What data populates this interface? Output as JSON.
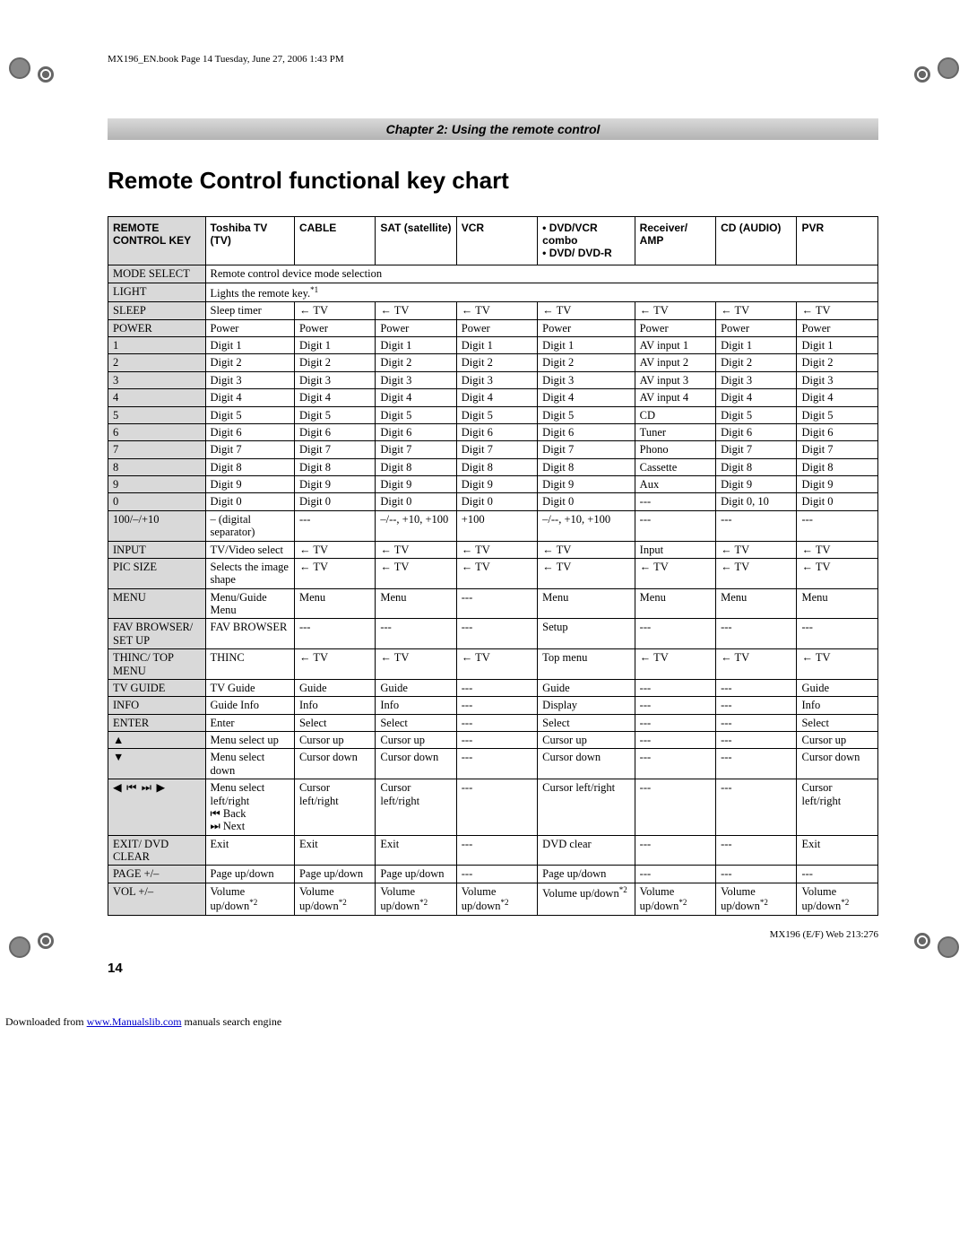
{
  "book_header": "MX196_EN.book  Page 14  Tuesday, June 27, 2006  1:43 PM",
  "chapter_banner": "Chapter 2: Using the remote control",
  "main_title": "Remote Control functional key chart",
  "page_number": "14",
  "footer_right": "MX196 (E/F) Web 213:276",
  "download_prefix": "Downloaded from ",
  "download_link": "www.Manualslib.com",
  "download_suffix": " manuals search engine",
  "columns": [
    "REMOTE CONTROL KEY",
    "Toshiba TV (TV)",
    "CABLE",
    "SAT (satellite)",
    "VCR",
    "• DVD/VCR combo\n• DVD/ DVD-R",
    "Receiver/ AMP",
    "CD (AUDIO)",
    "PVR"
  ],
  "span_rows": [
    {
      "key": "MODE SELECT",
      "text": "Remote control device mode selection"
    },
    {
      "key": "LIGHT",
      "text": "Lights the remote key.",
      "sup": "*1"
    }
  ],
  "rows": [
    {
      "k": "SLEEP",
      "c": [
        "Sleep timer",
        "← TV",
        "← TV",
        "← TV",
        "← TV",
        "← TV",
        "← TV",
        "← TV"
      ]
    },
    {
      "k": "POWER",
      "c": [
        "Power",
        "Power",
        "Power",
        "Power",
        "Power",
        "Power",
        "Power",
        "Power"
      ]
    },
    {
      "k": "1",
      "c": [
        "Digit 1",
        "Digit 1",
        "Digit 1",
        "Digit 1",
        "Digit 1",
        "AV input 1",
        "Digit 1",
        "Digit 1"
      ]
    },
    {
      "k": "2",
      "c": [
        "Digit 2",
        "Digit 2",
        "Digit 2",
        "Digit 2",
        "Digit 2",
        "AV input 2",
        "Digit 2",
        "Digit 2"
      ]
    },
    {
      "k": "3",
      "c": [
        "Digit 3",
        "Digit 3",
        "Digit 3",
        "Digit 3",
        "Digit 3",
        "AV input 3",
        "Digit 3",
        "Digit 3"
      ]
    },
    {
      "k": "4",
      "c": [
        "Digit 4",
        "Digit 4",
        "Digit 4",
        "Digit 4",
        "Digit 4",
        "AV input 4",
        "Digit 4",
        "Digit 4"
      ]
    },
    {
      "k": "5",
      "c": [
        "Digit 5",
        "Digit 5",
        "Digit 5",
        "Digit 5",
        "Digit 5",
        "CD",
        "Digit 5",
        "Digit 5"
      ]
    },
    {
      "k": "6",
      "c": [
        "Digit 6",
        "Digit 6",
        "Digit 6",
        "Digit 6",
        "Digit 6",
        "Tuner",
        "Digit 6",
        "Digit 6"
      ]
    },
    {
      "k": "7",
      "c": [
        "Digit 7",
        "Digit 7",
        "Digit 7",
        "Digit 7",
        "Digit 7",
        "Phono",
        "Digit 7",
        "Digit 7"
      ]
    },
    {
      "k": "8",
      "c": [
        "Digit 8",
        "Digit 8",
        "Digit 8",
        "Digit 8",
        "Digit 8",
        "Cassette",
        "Digit 8",
        "Digit 8"
      ]
    },
    {
      "k": "9",
      "c": [
        "Digit 9",
        "Digit 9",
        "Digit 9",
        "Digit 9",
        "Digit 9",
        "Aux",
        "Digit 9",
        "Digit 9"
      ]
    },
    {
      "k": "0",
      "c": [
        "Digit 0",
        "Digit 0",
        "Digit 0",
        "Digit 0",
        "Digit 0",
        "---",
        "Digit 0, 10",
        "Digit 0"
      ]
    },
    {
      "k": "100/–/+10",
      "c": [
        "– (digital separator)",
        "---",
        "–/--, +10, +100",
        "+100",
        "–/--, +10, +100",
        "---",
        "---",
        "---"
      ]
    },
    {
      "k": "INPUT",
      "c": [
        "TV/Video select",
        "← TV",
        "← TV",
        "← TV",
        "← TV",
        "Input",
        "← TV",
        "← TV"
      ]
    },
    {
      "k": "PIC SIZE",
      "c": [
        "Selects the image shape",
        "← TV",
        "← TV",
        "← TV",
        "← TV",
        "← TV",
        "← TV",
        "← TV"
      ]
    },
    {
      "k": "MENU",
      "c": [
        "Menu/Guide Menu",
        "Menu",
        "Menu",
        "---",
        "Menu",
        "Menu",
        "Menu",
        "Menu"
      ]
    },
    {
      "k": "FAV BROWSER/ SET UP",
      "c": [
        "FAV BROWSER",
        "---",
        "---",
        "---",
        "Setup",
        "---",
        "---",
        "---"
      ]
    },
    {
      "k": "THINC/ TOP MENU",
      "c": [
        "THINC",
        "← TV",
        "← TV",
        "← TV",
        "Top menu",
        "← TV",
        "← TV",
        "← TV"
      ]
    },
    {
      "k": "TV GUIDE",
      "c": [
        "TV Guide",
        "Guide",
        "Guide",
        "---",
        "Guide",
        "---",
        "---",
        "Guide"
      ]
    },
    {
      "k": "INFO",
      "c": [
        "Guide Info",
        "Info",
        "Info",
        "---",
        "Display",
        "---",
        "---",
        "Info"
      ]
    },
    {
      "k": "ENTER",
      "c": [
        "Enter",
        "Select",
        "Select",
        "---",
        "Select",
        "---",
        "---",
        "Select"
      ]
    },
    {
      "k": "▲",
      "c": [
        "Menu select up",
        "Cursor up",
        "Cursor up",
        "---",
        "Cursor up",
        "---",
        "---",
        "Cursor up"
      ]
    },
    {
      "k": "▼",
      "c": [
        "Menu select down",
        "Cursor down",
        "Cursor down",
        "---",
        "Cursor down",
        "---",
        "---",
        "Cursor down"
      ]
    },
    {
      "k": "◀ ⏮ ⏭ ▶",
      "arrow": true,
      "c": [
        "Menu select left/right\n⏮ Back\n⏭ Next",
        "Cursor left/right",
        "Cursor left/right",
        "---",
        "Cursor left/right",
        "---",
        "---",
        "Cursor left/right"
      ]
    },
    {
      "k": "EXIT/ DVD CLEAR",
      "c": [
        "Exit",
        "Exit",
        "Exit",
        "---",
        "DVD clear",
        "---",
        "---",
        "Exit"
      ]
    },
    {
      "k": "PAGE +/–",
      "c": [
        "Page up/down",
        "Page up/down",
        "Page up/down",
        "---",
        "Page up/down",
        "---",
        "---",
        "---"
      ]
    },
    {
      "k": "VOL +/–",
      "sup": "*2",
      "c": [
        "Volume up/down",
        "Volume up/down",
        "Volume up/down",
        "Volume up/down",
        "Volume up/down",
        "Volume up/down",
        "Volume up/down",
        "Volume up/down"
      ]
    }
  ],
  "styling": {
    "page_bg": "#ffffff",
    "banner_gradient": [
      "#d9d9d9",
      "#b3b3b3"
    ],
    "key_col_bg": "#d9d9d9",
    "border_color": "#000000",
    "title_fontsize": 26,
    "body_fontsize": 12.5,
    "header_fontsize": 12
  }
}
